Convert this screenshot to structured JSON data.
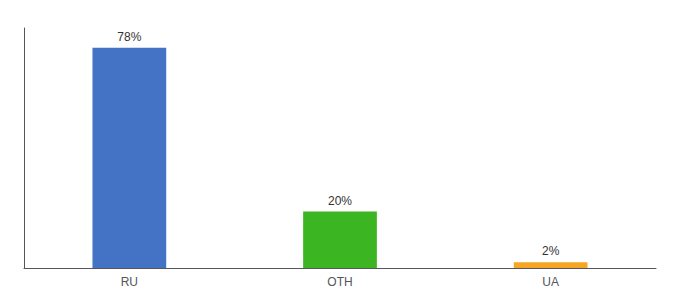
{
  "chart_data": {
    "type": "bar",
    "categories": [
      "RU",
      "OTH",
      "UA"
    ],
    "values": [
      78,
      20,
      2
    ],
    "value_labels": [
      "78%",
      "20%",
      "2%"
    ],
    "colors": [
      "#4472c4",
      "#3cb523",
      "#f5a623"
    ],
    "ylim": [
      0,
      85
    ],
    "grid": false,
    "tick_labels": "x",
    "data_labels": true
  }
}
